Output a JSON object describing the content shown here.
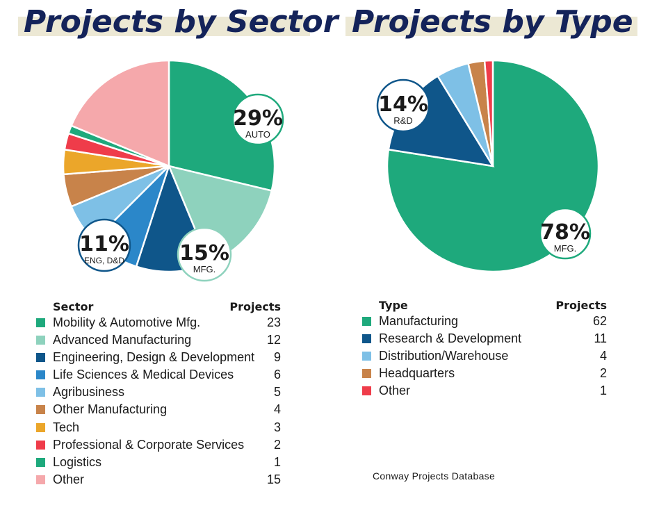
{
  "chart_data": [
    {
      "type": "pie",
      "title": "Projects by Sector",
      "legend_header": {
        "name": "Sector",
        "value": "Projects"
      },
      "slices": [
        {
          "label": "Mobility & Automotive Mfg.",
          "value": 23,
          "color": "#1ea97c"
        },
        {
          "label": "Advanced Manufacturing",
          "value": 12,
          "color": "#8ed2bd"
        },
        {
          "label": "Engineering, Design & Development",
          "value": 9,
          "color": "#0f568a"
        },
        {
          "label": "Life Sciences & Medical Devices",
          "value": 6,
          "color": "#2b87c9"
        },
        {
          "label": "Agribusiness",
          "value": 5,
          "color": "#7ec0e6"
        },
        {
          "label": "Other Manufacturing",
          "value": 4,
          "color": "#c8834a"
        },
        {
          "label": "Tech",
          "value": 3,
          "color": "#eba62a"
        },
        {
          "label": "Professional & Corporate Services",
          "value": 2,
          "color": "#ef3c4a"
        },
        {
          "label": "Logistics",
          "value": 1,
          "color": "#1ea97c"
        },
        {
          "label": "Other",
          "value": 15,
          "color": "#f5a8ab"
        }
      ],
      "callouts": [
        {
          "slice": 0,
          "pct": "29%",
          "label": "AUTO"
        },
        {
          "slice": 1,
          "pct": "15%",
          "label": "MFG."
        },
        {
          "slice": 2,
          "pct": "11%",
          "label": "ENG, D&D"
        }
      ]
    },
    {
      "type": "pie",
      "title": "Projects by Type",
      "legend_header": {
        "name": "Type",
        "value": "Projects"
      },
      "slices": [
        {
          "label": "Manufacturing",
          "value": 62,
          "color": "#1ea97c"
        },
        {
          "label": "Research & Development",
          "value": 11,
          "color": "#0f568a"
        },
        {
          "label": "Distribution/Warehouse",
          "value": 4,
          "color": "#7ec0e6"
        },
        {
          "label": "Headquarters",
          "value": 2,
          "color": "#c8834a"
        },
        {
          "label": "Other",
          "value": 1,
          "color": "#ef3c4a"
        }
      ],
      "callouts": [
        {
          "slice": 0,
          "pct": "78%",
          "label": "MFG."
        },
        {
          "slice": 1,
          "pct": "14%",
          "label": "R&D"
        }
      ]
    }
  ],
  "source": "Conway Projects Database"
}
